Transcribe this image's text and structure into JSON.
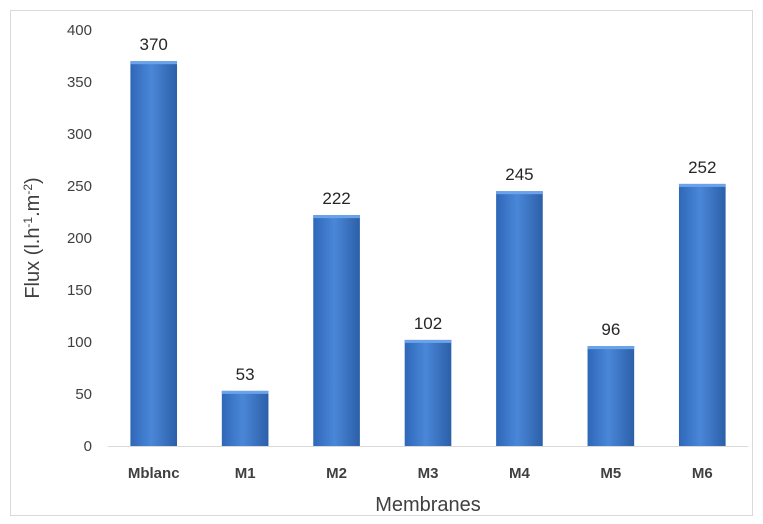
{
  "chart_data": {
    "type": "bar",
    "categories": [
      "Mblanc",
      "M1",
      "M2",
      "M3",
      "M4",
      "M5",
      "M6"
    ],
    "values": [
      370,
      53,
      222,
      102,
      245,
      96,
      252
    ],
    "data_labels": [
      "370",
      "53",
      "222",
      "102",
      "245",
      "96",
      "252"
    ],
    "title": "",
    "xlabel": "Membranes",
    "ylabel_main": "Flux (l.h",
    "ylabel_sup1": "-1",
    "ylabel_mid": ".m",
    "ylabel_sup2": "-2",
    "ylabel_end": ")",
    "ylim": [
      0,
      400
    ],
    "yticks": [
      0,
      50,
      100,
      150,
      200,
      250,
      300,
      350,
      400
    ],
    "grid": false,
    "legend": "none",
    "colors": {
      "bar_top": "#5a94e0",
      "bar_mid": "#3b78cf",
      "bar_bottom": "#2c5fa8",
      "axis": "#d9d9d9",
      "frame": "#d9d9d9"
    }
  }
}
